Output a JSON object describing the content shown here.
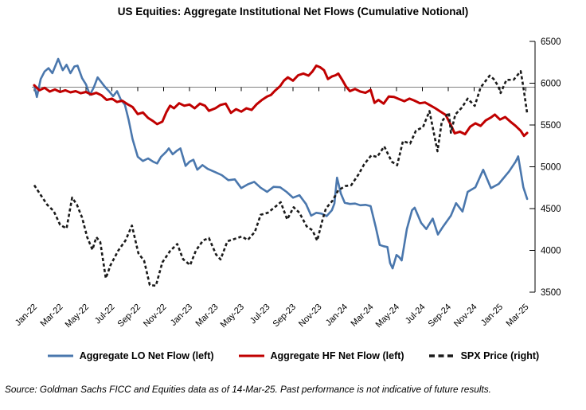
{
  "title": "US Equities: Aggregate Institutional Net Flows (Cumulative Notional)",
  "footer": {
    "source": "Source: Goldman Sachs FICC and Equities data as of 14-Mar-25. Past performance is not indicative of future results."
  },
  "colors": {
    "lo_blue": "#4a77ad",
    "hf_red": "#c00000",
    "spx_black": "#1a1a1a",
    "baseline_gray": "#808080",
    "axis_black": "#000000"
  },
  "legend": [
    {
      "id": "lo",
      "label": "Aggregate LO Net Flow (left)",
      "color": "#4a77ad",
      "style": "solid"
    },
    {
      "id": "hf",
      "label": "Aggregate HF Net Flow (left)",
      "color": "#c00000",
      "style": "solid"
    },
    {
      "id": "spx",
      "label": "SPX Price (right)",
      "color": "#1a1a1a",
      "style": "dashed"
    }
  ],
  "chart_data": {
    "type": "line",
    "title": "US Equities: Aggregate Institutional Net Flows (Cumulative Notional)",
    "x_axis": {
      "unit": "months since Jan-2022 (0 = Jan-22, 38 = Mar-25)",
      "tick_every_months": 2,
      "tick_labels": [
        "Jan-22",
        "Mar-22",
        "May-22",
        "Jul-22",
        "Sep-22",
        "Nov-22",
        "Jan-23",
        "Mar-23",
        "May-23",
        "Jul-23",
        "Sep-23",
        "Nov-23",
        "Jan-24",
        "Mar-24",
        "May-24",
        "Jul-24",
        "Sep-24",
        "Nov-24",
        "Jan-25",
        "Mar-25"
      ]
    },
    "right_axis": {
      "min": 3500,
      "max": 6500,
      "step": 500,
      "tick_labels": [
        "6500",
        "6000",
        "5500",
        "5000",
        "4500",
        "4000",
        "3500"
      ]
    },
    "left_axis": {
      "tick_labels_visible": false,
      "zero_baseline": true,
      "note": "LO/HF cumulative flow series are plotted against the unlabeled left axis whose zero sits on the horizontal baseline (~6000 on the right scale); their point values below are visual positions expressed in right-axis units."
    },
    "grid": "none (single horizontal baseline with month ticks)",
    "legend_position": "bottom center",
    "series": [
      {
        "id": "lo",
        "name": "Aggregate LO Net Flow (left)",
        "axis": "left",
        "color": "#4a77ad",
        "line_style": "solid",
        "points": [
          [
            0,
            5975
          ],
          [
            0.2,
            5835
          ],
          [
            0.5,
            6050
          ],
          [
            0.8,
            6140
          ],
          [
            1.1,
            6180
          ],
          [
            1.4,
            6120
          ],
          [
            1.85,
            6290
          ],
          [
            2.2,
            6155
          ],
          [
            2.5,
            6220
          ],
          [
            2.8,
            6120
          ],
          [
            3.1,
            6200
          ],
          [
            3.35,
            6210
          ],
          [
            3.7,
            6060
          ],
          [
            4,
            5985
          ],
          [
            4.3,
            5860
          ],
          [
            4.6,
            5950
          ],
          [
            4.9,
            6070
          ],
          [
            5.2,
            6010
          ],
          [
            5.5,
            5950
          ],
          [
            5.8,
            5900
          ],
          [
            6.1,
            5845
          ],
          [
            6.4,
            5905
          ],
          [
            6.7,
            5800
          ],
          [
            7,
            5745
          ],
          [
            7.3,
            5560
          ],
          [
            7.6,
            5330
          ],
          [
            8,
            5120
          ],
          [
            8.4,
            5070
          ],
          [
            8.8,
            5100
          ],
          [
            9.2,
            5060
          ],
          [
            9.5,
            5040
          ],
          [
            9.8,
            5120
          ],
          [
            10.2,
            5180
          ],
          [
            10.4,
            5220
          ],
          [
            10.7,
            5150
          ],
          [
            11,
            5190
          ],
          [
            11.3,
            5220
          ],
          [
            11.7,
            5010
          ],
          [
            12,
            5060
          ],
          [
            12.3,
            5085
          ],
          [
            12.6,
            4965
          ],
          [
            13,
            5020
          ],
          [
            13.4,
            4975
          ],
          [
            14,
            4935
          ],
          [
            14.5,
            4900
          ],
          [
            15,
            4840
          ],
          [
            15.5,
            4850
          ],
          [
            16,
            4745
          ],
          [
            16.5,
            4790
          ],
          [
            17,
            4820
          ],
          [
            17.5,
            4750
          ],
          [
            18,
            4700
          ],
          [
            18.5,
            4760
          ],
          [
            19,
            4755
          ],
          [
            19.5,
            4700
          ],
          [
            20,
            4630
          ],
          [
            20.5,
            4660
          ],
          [
            21,
            4555
          ],
          [
            21.4,
            4415
          ],
          [
            21.8,
            4450
          ],
          [
            22.2,
            4440
          ],
          [
            22.6,
            4410
          ],
          [
            23,
            4480
          ],
          [
            23.2,
            4560
          ],
          [
            23.4,
            4870
          ],
          [
            23.7,
            4680
          ],
          [
            24,
            4570
          ],
          [
            24.4,
            4555
          ],
          [
            24.8,
            4560
          ],
          [
            25.2,
            4540
          ],
          [
            25.6,
            4545
          ],
          [
            26,
            4530
          ],
          [
            26.4,
            4275
          ],
          [
            26.7,
            4065
          ],
          [
            27,
            4050
          ],
          [
            27.3,
            4040
          ],
          [
            27.5,
            3850
          ],
          [
            27.7,
            3785
          ],
          [
            28,
            3945
          ],
          [
            28.2,
            3920
          ],
          [
            28.4,
            3880
          ],
          [
            28.8,
            4255
          ],
          [
            29.2,
            4480
          ],
          [
            29.4,
            4510
          ],
          [
            29.9,
            4330
          ],
          [
            30.3,
            4255
          ],
          [
            30.8,
            4380
          ],
          [
            31.2,
            4190
          ],
          [
            31.6,
            4285
          ],
          [
            32.2,
            4415
          ],
          [
            32.6,
            4565
          ],
          [
            33.1,
            4465
          ],
          [
            33.5,
            4700
          ],
          [
            34.1,
            4755
          ],
          [
            34.7,
            4965
          ],
          [
            35.3,
            4745
          ],
          [
            35.9,
            4795
          ],
          [
            36.7,
            4945
          ],
          [
            37.2,
            5060
          ],
          [
            37.4,
            5125
          ],
          [
            37.8,
            4755
          ],
          [
            38.1,
            4615
          ]
        ]
      },
      {
        "id": "hf",
        "name": "Aggregate HF Net Flow (left)",
        "axis": "left",
        "color": "#c00000",
        "line_style": "solid",
        "points": [
          [
            0,
            5975
          ],
          [
            0.4,
            5915
          ],
          [
            0.8,
            5945
          ],
          [
            1.2,
            5900
          ],
          [
            1.6,
            5925
          ],
          [
            2,
            5895
          ],
          [
            2.4,
            5915
          ],
          [
            2.8,
            5890
          ],
          [
            3.2,
            5905
          ],
          [
            3.6,
            5880
          ],
          [
            4,
            5895
          ],
          [
            4.4,
            5865
          ],
          [
            4.8,
            5885
          ],
          [
            5.2,
            5855
          ],
          [
            5.6,
            5800
          ],
          [
            6,
            5815
          ],
          [
            6.4,
            5775
          ],
          [
            6.8,
            5790
          ],
          [
            7.2,
            5750
          ],
          [
            7.6,
            5715
          ],
          [
            8,
            5630
          ],
          [
            8.4,
            5650
          ],
          [
            8.8,
            5585
          ],
          [
            9.2,
            5545
          ],
          [
            9.5,
            5510
          ],
          [
            9.9,
            5540
          ],
          [
            10.2,
            5650
          ],
          [
            10.5,
            5730
          ],
          [
            10.8,
            5700
          ],
          [
            11.2,
            5760
          ],
          [
            11.6,
            5730
          ],
          [
            12,
            5745
          ],
          [
            12.4,
            5700
          ],
          [
            12.8,
            5755
          ],
          [
            13.2,
            5730
          ],
          [
            13.5,
            5670
          ],
          [
            14,
            5700
          ],
          [
            14.4,
            5740
          ],
          [
            14.8,
            5755
          ],
          [
            15.2,
            5645
          ],
          [
            15.6,
            5690
          ],
          [
            16,
            5660
          ],
          [
            16.4,
            5700
          ],
          [
            16.8,
            5680
          ],
          [
            17.2,
            5750
          ],
          [
            17.6,
            5800
          ],
          [
            18,
            5840
          ],
          [
            18.3,
            5860
          ],
          [
            18.6,
            5910
          ],
          [
            19,
            5965
          ],
          [
            19.3,
            6030
          ],
          [
            19.6,
            6070
          ],
          [
            20,
            6030
          ],
          [
            20.4,
            6095
          ],
          [
            20.8,
            6115
          ],
          [
            21.2,
            6090
          ],
          [
            21.5,
            6140
          ],
          [
            21.8,
            6210
          ],
          [
            22.1,
            6190
          ],
          [
            22.4,
            6155
          ],
          [
            22.7,
            6050
          ],
          [
            23,
            6080
          ],
          [
            23.3,
            6095
          ],
          [
            23.5,
            6115
          ],
          [
            23.8,
            6040
          ],
          [
            24.1,
            5960
          ],
          [
            24.4,
            5905
          ],
          [
            24.8,
            5930
          ],
          [
            25.2,
            5900
          ],
          [
            25.6,
            5885
          ],
          [
            26,
            5920
          ],
          [
            26.3,
            5765
          ],
          [
            26.6,
            5800
          ],
          [
            27,
            5755
          ],
          [
            27.4,
            5840
          ],
          [
            27.8,
            5835
          ],
          [
            28.2,
            5810
          ],
          [
            28.6,
            5785
          ],
          [
            29,
            5815
          ],
          [
            29.4,
            5790
          ],
          [
            29.8,
            5760
          ],
          [
            30.2,
            5770
          ],
          [
            30.6,
            5735
          ],
          [
            31,
            5700
          ],
          [
            31.4,
            5660
          ],
          [
            31.8,
            5620
          ],
          [
            32.2,
            5500
          ],
          [
            32.5,
            5400
          ],
          [
            32.9,
            5420
          ],
          [
            33.3,
            5390
          ],
          [
            33.7,
            5480
          ],
          [
            34.1,
            5520
          ],
          [
            34.5,
            5490
          ],
          [
            34.9,
            5555
          ],
          [
            35.3,
            5590
          ],
          [
            35.6,
            5625
          ],
          [
            36,
            5565
          ],
          [
            36.4,
            5595
          ],
          [
            36.8,
            5540
          ],
          [
            37.2,
            5490
          ],
          [
            37.6,
            5430
          ],
          [
            37.85,
            5370
          ],
          [
            38.1,
            5405
          ]
        ]
      },
      {
        "id": "spx",
        "name": "SPX Price (right)",
        "axis": "right",
        "color": "#1a1a1a",
        "line_style": "dashed",
        "points": [
          [
            0,
            4780
          ],
          [
            0.5,
            4663
          ],
          [
            1,
            4546
          ],
          [
            1.5,
            4471
          ],
          [
            2,
            4306
          ],
          [
            2.5,
            4262
          ],
          [
            2.93,
            4631
          ],
          [
            3.3,
            4546
          ],
          [
            3.7,
            4392
          ],
          [
            4.1,
            4155
          ],
          [
            4.5,
            4008
          ],
          [
            4.8,
            4158
          ],
          [
            5.1,
            4101
          ],
          [
            5.53,
            3667
          ],
          [
            5.9,
            3825
          ],
          [
            6.5,
            3999
          ],
          [
            7.05,
            4118
          ],
          [
            7.55,
            4297
          ],
          [
            8.05,
            3966
          ],
          [
            8.5,
            3873
          ],
          [
            8.93,
            3586
          ],
          [
            9.4,
            3577
          ],
          [
            9.9,
            3856
          ],
          [
            10.5,
            3992
          ],
          [
            11.05,
            4076
          ],
          [
            11.5,
            3895
          ],
          [
            12.05,
            3824
          ],
          [
            12.5,
            3999
          ],
          [
            13.05,
            4119
          ],
          [
            13.5,
            4148
          ],
          [
            14.05,
            3951
          ],
          [
            14.4,
            3891
          ],
          [
            14.93,
            4109
          ],
          [
            15.5,
            4138
          ],
          [
            16.05,
            4167
          ],
          [
            16.5,
            4124
          ],
          [
            17.05,
            4221
          ],
          [
            17.5,
            4426
          ],
          [
            18.05,
            4450
          ],
          [
            18.5,
            4505
          ],
          [
            19.05,
            4576
          ],
          [
            19.55,
            4370
          ],
          [
            20.05,
            4516
          ],
          [
            20.5,
            4450
          ],
          [
            21.05,
            4288
          ],
          [
            21.5,
            4240
          ],
          [
            21.87,
            4117
          ],
          [
            22.3,
            4378
          ],
          [
            22.55,
            4503
          ],
          [
            23.05,
            4594
          ],
          [
            23.5,
            4719
          ],
          [
            24.05,
            4770
          ],
          [
            24.5,
            4780
          ],
          [
            25.05,
            4906
          ],
          [
            25.5,
            5030
          ],
          [
            26.05,
            5137
          ],
          [
            26.5,
            5117
          ],
          [
            27.05,
            5244
          ],
          [
            27.63,
            5062
          ],
          [
            28.05,
            5018
          ],
          [
            28.5,
            5308
          ],
          [
            29.05,
            5278
          ],
          [
            29.5,
            5432
          ],
          [
            30.05,
            5475
          ],
          [
            30.55,
            5667
          ],
          [
            31.17,
            5186
          ],
          [
            31.5,
            5543
          ],
          [
            32.05,
            5648
          ],
          [
            32.2,
            5408
          ],
          [
            32.55,
            5626
          ],
          [
            33.05,
            5709
          ],
          [
            33.5,
            5815
          ],
          [
            34.05,
            5729
          ],
          [
            34.5,
            5949
          ],
          [
            35.2,
            6090
          ],
          [
            35.5,
            6051
          ],
          [
            35.85,
            5970
          ],
          [
            36.05,
            5882
          ],
          [
            36.5,
            6040
          ],
          [
            37.05,
            6041
          ],
          [
            37.6,
            6144
          ],
          [
            37.8,
            5955
          ],
          [
            38.1,
            5639
          ]
        ]
      }
    ]
  }
}
